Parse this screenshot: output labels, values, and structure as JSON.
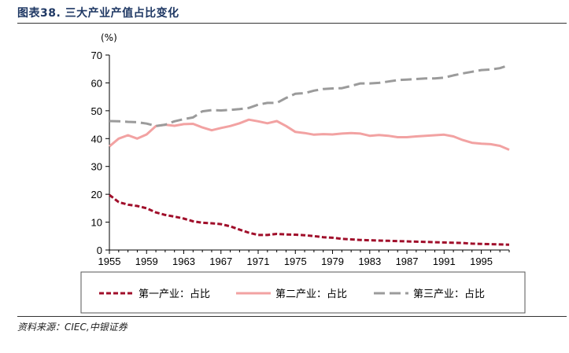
{
  "header": {
    "title": "图表38. 三大产业产值占比变化"
  },
  "footer": {
    "source": "资料来源：CIEC,中银证券"
  },
  "chart_data": {
    "type": "line",
    "unit_label": "(%)",
    "ylim": [
      0,
      70
    ],
    "yticks": [
      0,
      10,
      20,
      30,
      40,
      50,
      60,
      70
    ],
    "xlim": [
      1955,
      1998
    ],
    "xticks": [
      1955,
      1959,
      1963,
      1967,
      1971,
      1975,
      1979,
      1983,
      1987,
      1991,
      1995
    ],
    "grid": false,
    "legend_position": "bottom",
    "series": [
      {
        "name": "第一产业：占比",
        "color": "#a00e2a",
        "style": "dashed-short",
        "x": [
          1955,
          1956,
          1957,
          1958,
          1959,
          1960,
          1961,
          1962,
          1963,
          1964,
          1965,
          1966,
          1967,
          1968,
          1969,
          1970,
          1971,
          1972,
          1973,
          1974,
          1975,
          1976,
          1977,
          1978,
          1979,
          1980,
          1981,
          1982,
          1983,
          1984,
          1985,
          1986,
          1987,
          1988,
          1989,
          1990,
          1991,
          1992,
          1993,
          1994,
          1995,
          1996,
          1997,
          1998
        ],
        "values": [
          19.8,
          17.2,
          16.3,
          15.8,
          15.0,
          13.5,
          12.6,
          12.0,
          11.3,
          10.3,
          9.8,
          9.6,
          9.3,
          8.5,
          7.3,
          6.2,
          5.4,
          5.4,
          5.8,
          5.6,
          5.5,
          5.3,
          5.0,
          4.6,
          4.4,
          4.0,
          3.8,
          3.6,
          3.5,
          3.4,
          3.3,
          3.2,
          3.1,
          3.0,
          2.9,
          2.8,
          2.7,
          2.6,
          2.5,
          2.3,
          2.2,
          2.1,
          2.0,
          1.9
        ]
      },
      {
        "name": "第二产业：占比",
        "color": "#f2a2a2",
        "style": "solid",
        "x": [
          1955,
          1956,
          1957,
          1958,
          1959,
          1960,
          1961,
          1962,
          1963,
          1964,
          1965,
          1966,
          1967,
          1968,
          1969,
          1970,
          1971,
          1972,
          1973,
          1974,
          1975,
          1976,
          1977,
          1978,
          1979,
          1980,
          1981,
          1982,
          1983,
          1984,
          1985,
          1986,
          1987,
          1988,
          1989,
          1990,
          1991,
          1992,
          1993,
          1994,
          1995,
          1996,
          1997,
          1998
        ],
        "values": [
          37.2,
          40.0,
          41.2,
          40.0,
          41.5,
          44.5,
          45.0,
          44.6,
          45.2,
          45.3,
          44.0,
          43.0,
          43.8,
          44.5,
          45.5,
          46.8,
          46.2,
          45.5,
          46.3,
          44.5,
          42.4,
          42.0,
          41.4,
          41.6,
          41.5,
          41.8,
          42.0,
          41.8,
          41.0,
          41.3,
          41.0,
          40.5,
          40.5,
          40.8,
          41.0,
          41.2,
          41.4,
          40.8,
          39.5,
          38.5,
          38.2,
          38.0,
          37.4,
          36.0
        ]
      },
      {
        "name": "第三产业：占比",
        "color": "#9b9b9b",
        "style": "dashed-long",
        "x": [
          1955,
          1956,
          1957,
          1958,
          1959,
          1960,
          1961,
          1962,
          1963,
          1964,
          1965,
          1966,
          1967,
          1968,
          1969,
          1970,
          1971,
          1972,
          1973,
          1974,
          1975,
          1976,
          1977,
          1978,
          1979,
          1980,
          1981,
          1982,
          1983,
          1984,
          1985,
          1986,
          1987,
          1988,
          1989,
          1990,
          1991,
          1992,
          1993,
          1994,
          1995,
          1996,
          1997,
          1998
        ],
        "values": [
          46.3,
          46.2,
          46.0,
          45.9,
          45.4,
          44.5,
          45.0,
          46.2,
          47.0,
          47.6,
          49.8,
          50.2,
          50.1,
          50.3,
          50.6,
          51.0,
          52.2,
          52.8,
          52.8,
          54.6,
          56.1,
          56.3,
          57.2,
          57.8,
          58.0,
          58.1,
          58.9,
          59.8,
          59.8,
          60.0,
          60.5,
          61.0,
          61.2,
          61.4,
          61.6,
          61.6,
          61.9,
          62.7,
          63.4,
          64.0,
          64.6,
          64.8,
          65.3,
          66.4
        ]
      }
    ]
  }
}
